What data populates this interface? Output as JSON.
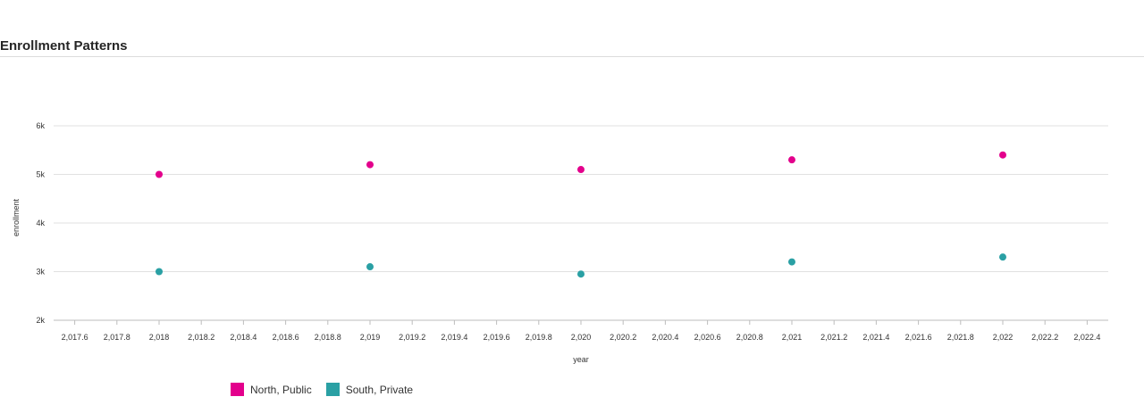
{
  "page": {
    "title": "Enrollment Patterns"
  },
  "chart_data": {
    "type": "scatter",
    "title": "Enrollment Patterns",
    "xlabel": "year",
    "ylabel": "enrollment",
    "xlim": [
      2017.5,
      2022.5
    ],
    "ylim": [
      2000,
      6000
    ],
    "x_ticks": [
      2017.6,
      2017.8,
      2018,
      2018.2,
      2018.4,
      2018.6,
      2018.8,
      2019,
      2019.2,
      2019.4,
      2019.6,
      2019.8,
      2020,
      2020.2,
      2020.4,
      2020.6,
      2020.8,
      2021,
      2021.2,
      2021.4,
      2021.6,
      2021.8,
      2022,
      2022.2,
      2022.4
    ],
    "x_tick_labels": [
      "2,017.6",
      "2,017.8",
      "2,018",
      "2,018.2",
      "2,018.4",
      "2,018.6",
      "2,018.8",
      "2,019",
      "2,019.2",
      "2,019.4",
      "2,019.6",
      "2,019.8",
      "2,020",
      "2,020.2",
      "2,020.4",
      "2,020.6",
      "2,020.8",
      "2,021",
      "2,021.2",
      "2,021.4",
      "2,021.6",
      "2,021.8",
      "2,022",
      "2,022.2",
      "2,022.4"
    ],
    "y_ticks": [
      2000,
      3000,
      4000,
      5000,
      6000
    ],
    "y_tick_labels": [
      "2k",
      "3k",
      "4k",
      "5k",
      "6k"
    ],
    "grid": "horizontal",
    "legend_position": "bottom-left",
    "series": [
      {
        "name": "North, Public",
        "color": "#e3008c",
        "x": [
          2018,
          2019,
          2020,
          2021,
          2022
        ],
        "y": [
          5000,
          5200,
          5100,
          5300,
          5400
        ]
      },
      {
        "name": "South, Private",
        "color": "#2aa0a4",
        "x": [
          2018,
          2019,
          2020,
          2021,
          2022
        ],
        "y": [
          3000,
          3100,
          2950,
          3200,
          3300
        ]
      }
    ]
  }
}
